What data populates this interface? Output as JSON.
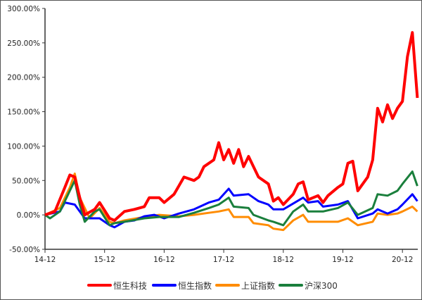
{
  "chart_data": {
    "type": "line",
    "title": "",
    "xlabel": "",
    "ylabel": "",
    "ylim": [
      -50,
      300
    ],
    "y_ticks": [
      "300.00%",
      "250.00%",
      "200.00%",
      "150.00%",
      "100.00%",
      "50.00%",
      "0.00%",
      "-50.00%"
    ],
    "y_tick_values": [
      300,
      250,
      200,
      150,
      100,
      50,
      0,
      -50
    ],
    "x_ticks": [
      "14-12",
      "15-12",
      "16-12",
      "17-12",
      "18-12",
      "19-12",
      "20-12"
    ],
    "x_range": [
      "2014-12",
      "2021-03"
    ],
    "grid": false,
    "legend_position": "bottom",
    "series": [
      {
        "name": "恒生科技",
        "color": "#ff0000",
        "points": [
          [
            "2014-12",
            0
          ],
          [
            "2015-02",
            5
          ],
          [
            "2015-04",
            40
          ],
          [
            "2015-05",
            58
          ],
          [
            "2015-06",
            55
          ],
          [
            "2015-07",
            25
          ],
          [
            "2015-08",
            0
          ],
          [
            "2015-10",
            8
          ],
          [
            "2015-11",
            18
          ],
          [
            "2016-01",
            -5
          ],
          [
            "2016-02",
            -8
          ],
          [
            "2016-04",
            5
          ],
          [
            "2016-06",
            8
          ],
          [
            "2016-08",
            12
          ],
          [
            "2016-09",
            25
          ],
          [
            "2016-11",
            25
          ],
          [
            "2016-12",
            18
          ],
          [
            "2017-02",
            30
          ],
          [
            "2017-04",
            55
          ],
          [
            "2017-06",
            50
          ],
          [
            "2017-07",
            55
          ],
          [
            "2017-08",
            70
          ],
          [
            "2017-10",
            80
          ],
          [
            "2017-11",
            105
          ],
          [
            "2017-12",
            80
          ],
          [
            "2018-01",
            95
          ],
          [
            "2018-02",
            75
          ],
          [
            "2018-03",
            95
          ],
          [
            "2018-04",
            70
          ],
          [
            "2018-05",
            85
          ],
          [
            "2018-07",
            55
          ],
          [
            "2018-09",
            45
          ],
          [
            "2018-10",
            20
          ],
          [
            "2018-11",
            25
          ],
          [
            "2018-12",
            15
          ],
          [
            "2019-02",
            30
          ],
          [
            "2019-03",
            45
          ],
          [
            "2019-04",
            48
          ],
          [
            "2019-05",
            22
          ],
          [
            "2019-07",
            28
          ],
          [
            "2019-08",
            18
          ],
          [
            "2019-09",
            28
          ],
          [
            "2019-11",
            40
          ],
          [
            "2019-12",
            45
          ],
          [
            "2020-01",
            75
          ],
          [
            "2020-02",
            78
          ],
          [
            "2020-03",
            35
          ],
          [
            "2020-05",
            55
          ],
          [
            "2020-06",
            80
          ],
          [
            "2020-07",
            155
          ],
          [
            "2020-08",
            135
          ],
          [
            "2020-09",
            160
          ],
          [
            "2020-10",
            140
          ],
          [
            "2020-11",
            155
          ],
          [
            "2020-12",
            165
          ],
          [
            "2021-01",
            230
          ],
          [
            "2021-02",
            265
          ],
          [
            "2021-03",
            170
          ]
        ]
      },
      {
        "name": "恒生指数",
        "color": "#0000ff",
        "points": [
          [
            "2014-12",
            0
          ],
          [
            "2015-03",
            5
          ],
          [
            "2015-04",
            18
          ],
          [
            "2015-06",
            15
          ],
          [
            "2015-07",
            5
          ],
          [
            "2015-08",
            -5
          ],
          [
            "2015-11",
            -5
          ],
          [
            "2016-01",
            -15
          ],
          [
            "2016-02",
            -18
          ],
          [
            "2016-04",
            -10
          ],
          [
            "2016-06",
            -8
          ],
          [
            "2016-08",
            -2
          ],
          [
            "2016-10",
            0
          ],
          [
            "2016-12",
            -5
          ],
          [
            "2017-03",
            2
          ],
          [
            "2017-06",
            8
          ],
          [
            "2017-09",
            18
          ],
          [
            "2017-11",
            22
          ],
          [
            "2018-01",
            38
          ],
          [
            "2018-02",
            28
          ],
          [
            "2018-05",
            30
          ],
          [
            "2018-07",
            20
          ],
          [
            "2018-09",
            15
          ],
          [
            "2018-10",
            8
          ],
          [
            "2018-12",
            8
          ],
          [
            "2019-04",
            25
          ],
          [
            "2019-05",
            18
          ],
          [
            "2019-07",
            20
          ],
          [
            "2019-08",
            12
          ],
          [
            "2019-11",
            15
          ],
          [
            "2020-01",
            20
          ],
          [
            "2020-03",
            -5
          ],
          [
            "2020-06",
            2
          ],
          [
            "2020-07",
            8
          ],
          [
            "2020-09",
            2
          ],
          [
            "2020-11",
            8
          ],
          [
            "2020-12",
            15
          ],
          [
            "2021-02",
            30
          ],
          [
            "2021-03",
            20
          ]
        ]
      },
      {
        "name": "上证指数",
        "color": "#ff8c00",
        "points": [
          [
            "2014-12",
            0
          ],
          [
            "2015-03",
            10
          ],
          [
            "2015-05",
            40
          ],
          [
            "2015-06",
            60
          ],
          [
            "2015-07",
            25
          ],
          [
            "2015-08",
            10
          ],
          [
            "2015-09",
            -5
          ],
          [
            "2015-11",
            10
          ],
          [
            "2016-01",
            -10
          ],
          [
            "2016-02",
            -12
          ],
          [
            "2016-04",
            -8
          ],
          [
            "2016-08",
            -3
          ],
          [
            "2016-11",
            0
          ],
          [
            "2017-03",
            -2
          ],
          [
            "2017-06",
            0
          ],
          [
            "2017-09",
            3
          ],
          [
            "2017-11",
            5
          ],
          [
            "2018-01",
            8
          ],
          [
            "2018-02",
            -3
          ],
          [
            "2018-05",
            -3
          ],
          [
            "2018-06",
            -12
          ],
          [
            "2018-09",
            -15
          ],
          [
            "2018-10",
            -20
          ],
          [
            "2018-12",
            -22
          ],
          [
            "2019-02",
            -8
          ],
          [
            "2019-04",
            0
          ],
          [
            "2019-05",
            -10
          ],
          [
            "2019-08",
            -10
          ],
          [
            "2019-11",
            -10
          ],
          [
            "2020-01",
            -5
          ],
          [
            "2020-03",
            -15
          ],
          [
            "2020-06",
            -10
          ],
          [
            "2020-07",
            2
          ],
          [
            "2020-09",
            0
          ],
          [
            "2020-11",
            2
          ],
          [
            "2020-12",
            5
          ],
          [
            "2021-02",
            12
          ],
          [
            "2021-03",
            5
          ]
        ]
      },
      {
        "name": "沪深300",
        "color": "#1a7f3c",
        "points": [
          [
            "2014-12",
            0
          ],
          [
            "2015-01",
            -5
          ],
          [
            "2015-03",
            5
          ],
          [
            "2015-05",
            35
          ],
          [
            "2015-06",
            50
          ],
          [
            "2015-07",
            15
          ],
          [
            "2015-08",
            -10
          ],
          [
            "2015-10",
            5
          ],
          [
            "2015-11",
            8
          ],
          [
            "2016-01",
            -15
          ],
          [
            "2016-02",
            -12
          ],
          [
            "2016-04",
            -10
          ],
          [
            "2016-08",
            -5
          ],
          [
            "2016-11",
            -3
          ],
          [
            "2017-03",
            -3
          ],
          [
            "2017-06",
            3
          ],
          [
            "2017-09",
            10
          ],
          [
            "2017-11",
            15
          ],
          [
            "2018-01",
            25
          ],
          [
            "2018-02",
            12
          ],
          [
            "2018-05",
            10
          ],
          [
            "2018-06",
            0
          ],
          [
            "2018-09",
            -8
          ],
          [
            "2018-10",
            -10
          ],
          [
            "2018-12",
            -15
          ],
          [
            "2019-02",
            5
          ],
          [
            "2019-04",
            15
          ],
          [
            "2019-05",
            5
          ],
          [
            "2019-08",
            5
          ],
          [
            "2019-11",
            10
          ],
          [
            "2020-01",
            18
          ],
          [
            "2020-03",
            0
          ],
          [
            "2020-06",
            10
          ],
          [
            "2020-07",
            30
          ],
          [
            "2020-09",
            28
          ],
          [
            "2020-11",
            35
          ],
          [
            "2020-12",
            45
          ],
          [
            "2021-02",
            63
          ],
          [
            "2021-03",
            42
          ]
        ]
      }
    ]
  }
}
